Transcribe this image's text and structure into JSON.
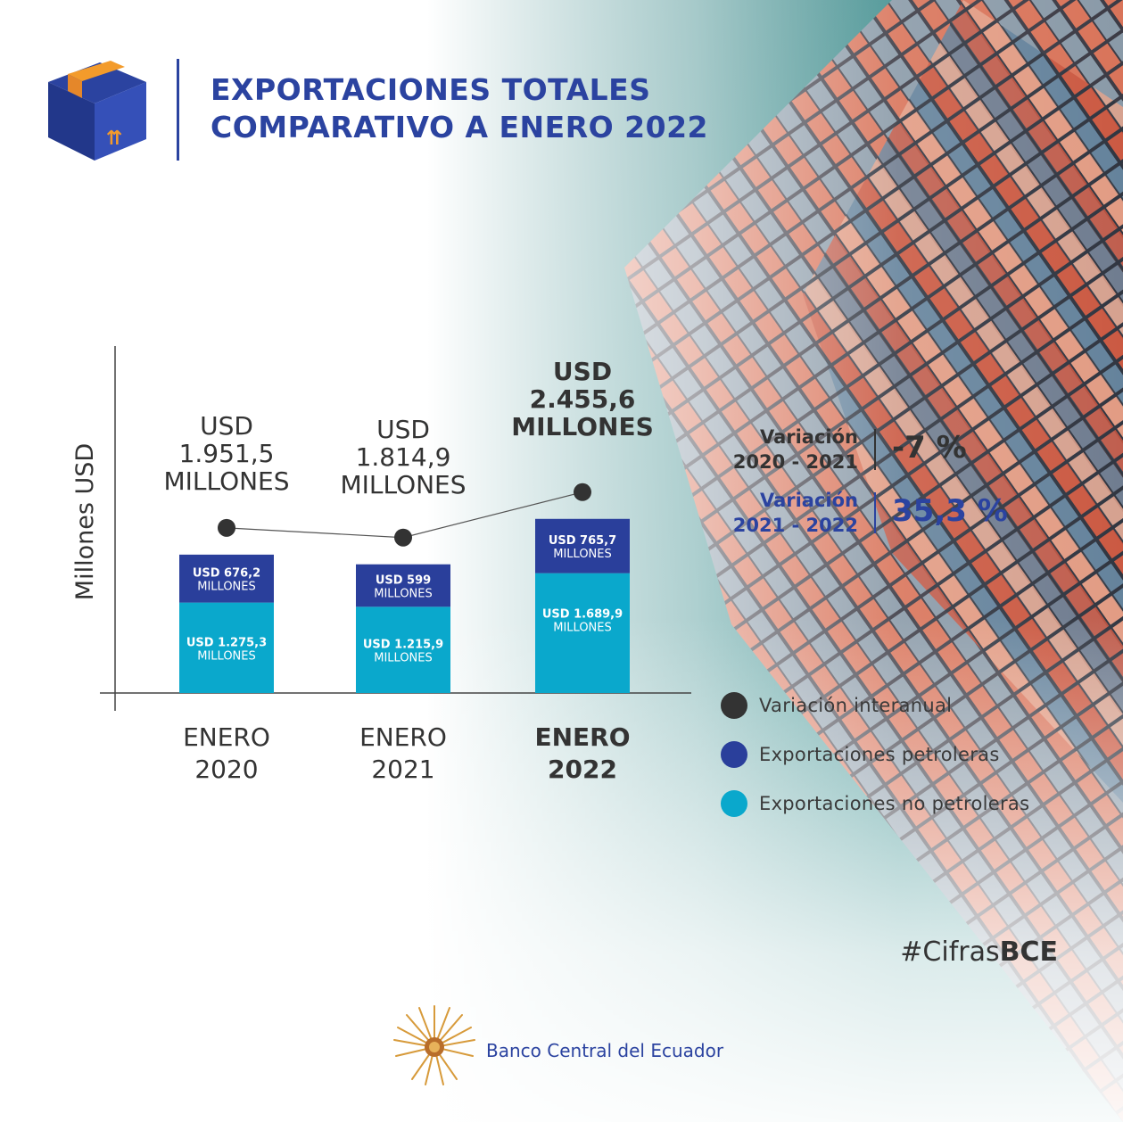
{
  "header": {
    "title_line1": "EXPORTACIONES TOTALES",
    "title_line2": "COMPARATIVO A ENERO 2022"
  },
  "colors": {
    "petroleras": "#2a3f9b",
    "no_petroleras": "#0aa8cc",
    "interanual": "#333333",
    "brand_blue": "#2b43a0",
    "axis": "#444444"
  },
  "chart_data": {
    "type": "bar",
    "stacked": true,
    "ylabel": "Millones USD",
    "categories": [
      {
        "line1": "ENERO",
        "line2": "2020",
        "bold": false
      },
      {
        "line1": "ENERO",
        "line2": "2021",
        "bold": false
      },
      {
        "line1": "ENERO",
        "line2": "2022",
        "bold": true
      }
    ],
    "series": [
      {
        "name": "Exportaciones no petroleras",
        "values": [
          1275.3,
          1215.9,
          1689.9
        ],
        "labels": [
          [
            "USD 1.275,3",
            "MILLONES"
          ],
          [
            "USD 1.215,9",
            "MILLONES"
          ],
          [
            "USD 1.689,9",
            "MILLONES"
          ]
        ]
      },
      {
        "name": "Exportaciones petroleras",
        "values": [
          676.2,
          599,
          765.7
        ],
        "labels": [
          [
            "USD 676,2",
            "MILLONES"
          ],
          [
            "USD 599",
            "MILLONES"
          ],
          [
            "USD 765,7",
            "MILLONES"
          ]
        ]
      }
    ],
    "totals": {
      "values": [
        1951.5,
        1814.9,
        2455.6
      ],
      "labels": [
        [
          "USD",
          "1.951,5",
          "MILLONES"
        ],
        [
          "USD",
          "1.814,9",
          "MILLONES"
        ],
        [
          "USD",
          "2.455,6",
          "MILLONES"
        ]
      ]
    },
    "legend": [
      {
        "label": "Variación interanual",
        "color": "#333333"
      },
      {
        "label": "Exportaciones petroleras",
        "color": "#2a3f9b"
      },
      {
        "label": "Exportaciones no petroleras",
        "color": "#0aa8cc"
      }
    ],
    "legend_position": "right",
    "grid": false
  },
  "variations": [
    {
      "label_line1": "Variación",
      "label_line2": "2020 - 2021",
      "value": "-7 %",
      "color": "#333333"
    },
    {
      "label_line1": "Variación",
      "label_line2": "2021 - 2022",
      "value": "35,3 %",
      "color": "#2b43a0"
    }
  ],
  "footer": {
    "hashtag_plain": "#Cifras",
    "hashtag_bold": "BCE",
    "bank_name": "Banco Central del Ecuador"
  }
}
